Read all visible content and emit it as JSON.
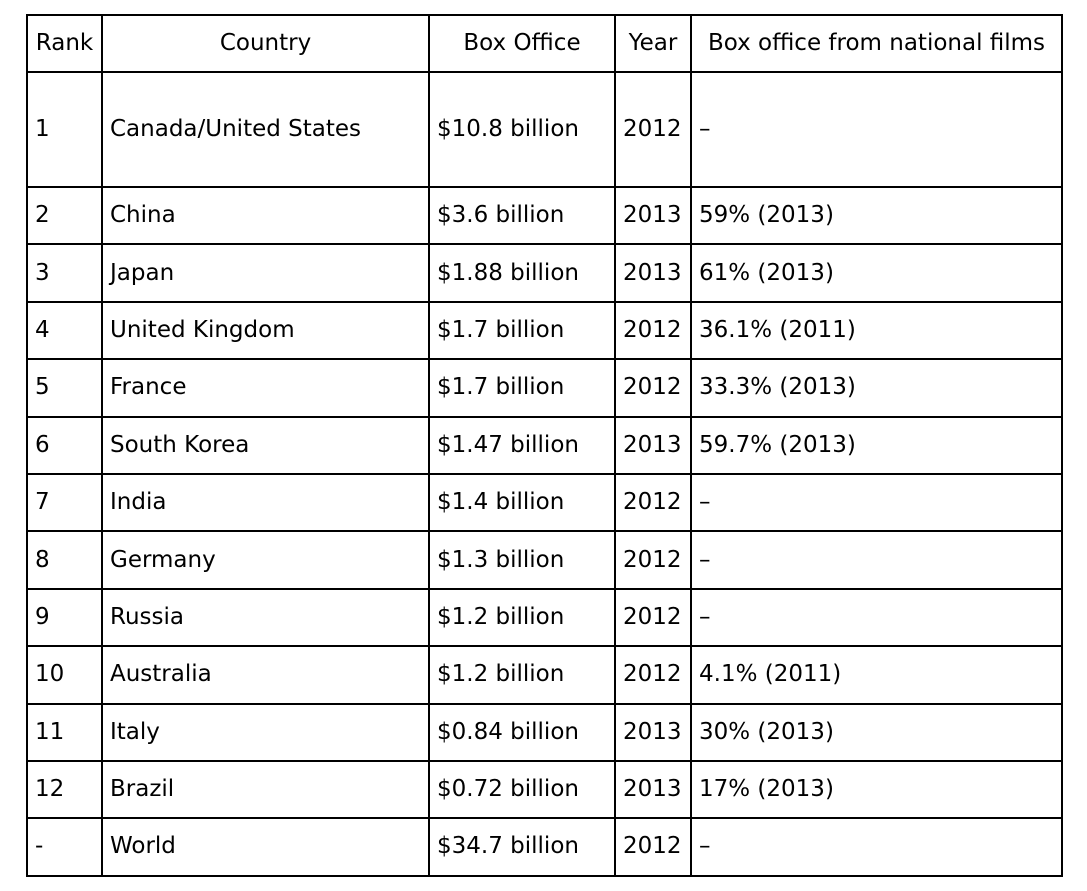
{
  "headers": {
    "rank": "Rank",
    "country": "Country",
    "box_office": "Box Office",
    "year": "Year",
    "national": "Box office  from national films"
  },
  "rows": [
    {
      "rank": "1",
      "country": "Canada/United States",
      "box_office": "$10.8 billion",
      "year": "2012",
      "national": "–"
    },
    {
      "rank": "2",
      "country": "China",
      "box_office": "$3.6 billion",
      "year": "2013",
      "national": "59% (2013)"
    },
    {
      "rank": "3",
      "country": "Japan",
      "box_office": "$1.88 billion",
      "year": "2013",
      "national": "61% (2013)"
    },
    {
      "rank": "4",
      "country": "United Kingdom",
      "box_office": "$1.7 billion",
      "year": "2012",
      "national": "36.1% (2011)"
    },
    {
      "rank": "5",
      "country": "France",
      "box_office": "$1.7 billion",
      "year": "2012",
      "national": "33.3% (2013)"
    },
    {
      "rank": "6",
      "country": "South Korea",
      "box_office": "$1.47 billion",
      "year": "2013",
      "national": "59.7% (2013)"
    },
    {
      "rank": "7",
      "country": "India",
      "box_office": "$1.4 billion",
      "year": "2012",
      "national": "–"
    },
    {
      "rank": "8",
      "country": "Germany",
      "box_office": "$1.3 billion",
      "year": "2012",
      "national": "–"
    },
    {
      "rank": "9",
      "country": "Russia",
      "box_office": "$1.2 billion",
      "year": "2012",
      "national": "–"
    },
    {
      "rank": "10",
      "country": "Australia",
      "box_office": "$1.2 billion",
      "year": "2012",
      "national": "4.1% (2011)"
    },
    {
      "rank": "11",
      "country": "Italy",
      "box_office": "$0.84 billion",
      "year": "2013",
      "national": "30% (2013)"
    },
    {
      "rank": "12",
      "country": "Brazil",
      "box_office": "$0.72 billion",
      "year": "2013",
      "national": "17% (2013)"
    },
    {
      "rank": "-",
      "country": "World",
      "box_office": "$34.7 billion",
      "year": "2012",
      "national": "–"
    }
  ]
}
